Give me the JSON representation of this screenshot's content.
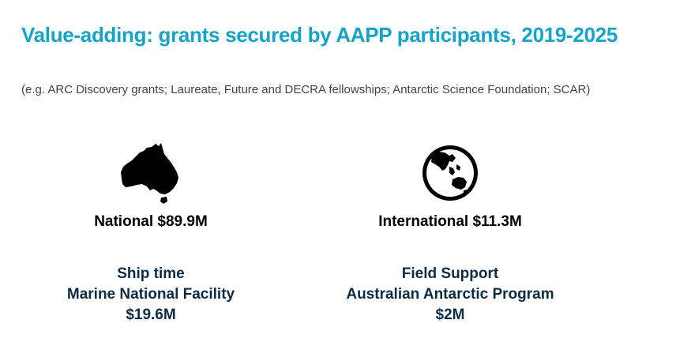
{
  "colors": {
    "title": "#16a3c9",
    "subtitle": "#444444",
    "stat": "#000000",
    "support": "#0e2b44"
  },
  "header": {
    "title": "Value-adding: grants secured by AAPP participants, 2019-2025",
    "subtitle": "(e.g. ARC Discovery grants; Laureate, Future and DECRA fellowships; Antarctic Science Foundation; SCAR)"
  },
  "national": {
    "icon": "australia-map-icon",
    "label": "National $89.9M"
  },
  "international": {
    "icon": "globe-icon",
    "label": "International $11.3M"
  },
  "ship_time": {
    "line1": "Ship time",
    "line2": "Marine National Facility",
    "amount": "$19.6M"
  },
  "field_support": {
    "line1": "Field Support",
    "line2": "Australian Antarctic Program",
    "amount": "$2M"
  }
}
